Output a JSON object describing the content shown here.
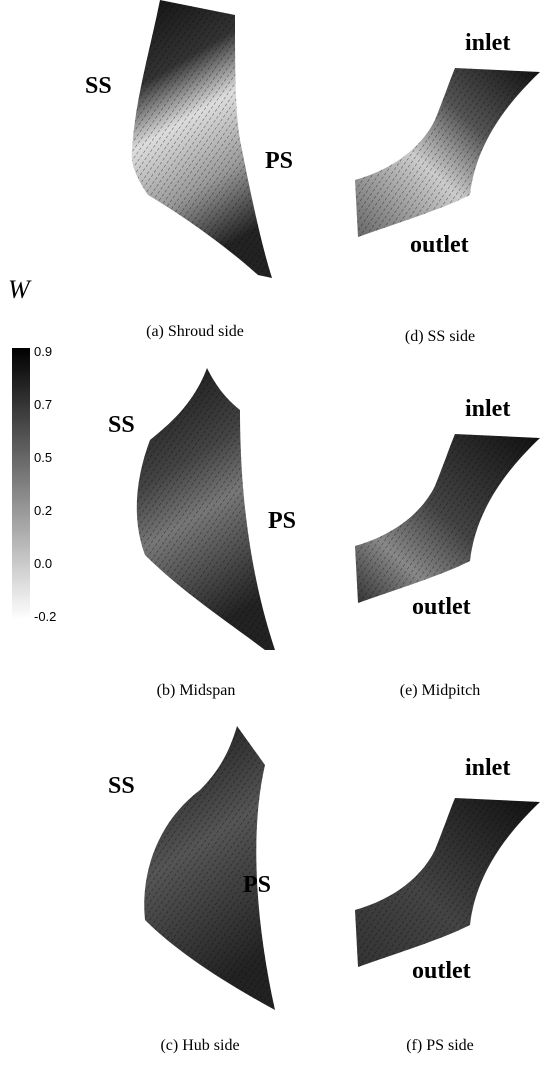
{
  "panels": [
    {
      "caption": "(a) Shroud side",
      "labels": [
        "SS",
        "PS"
      ]
    },
    {
      "caption": "(b) Midspan",
      "labels": [
        "SS",
        "PS"
      ]
    },
    {
      "caption": "(c) Hub side",
      "labels": [
        "SS",
        "PS"
      ]
    },
    {
      "caption": "(d) SS side",
      "labels": [
        "inlet",
        "outlet"
      ]
    },
    {
      "caption": "(e) Midpitch",
      "labels": [
        "inlet",
        "outlet"
      ]
    },
    {
      "caption": "(f) PS side",
      "labels": [
        "inlet",
        "outlet"
      ]
    }
  ],
  "colorbar": {
    "label": "W",
    "ticks": [
      "0.9",
      "0.7",
      "0.5",
      "0.2",
      "0.0",
      "-0.2"
    ]
  }
}
